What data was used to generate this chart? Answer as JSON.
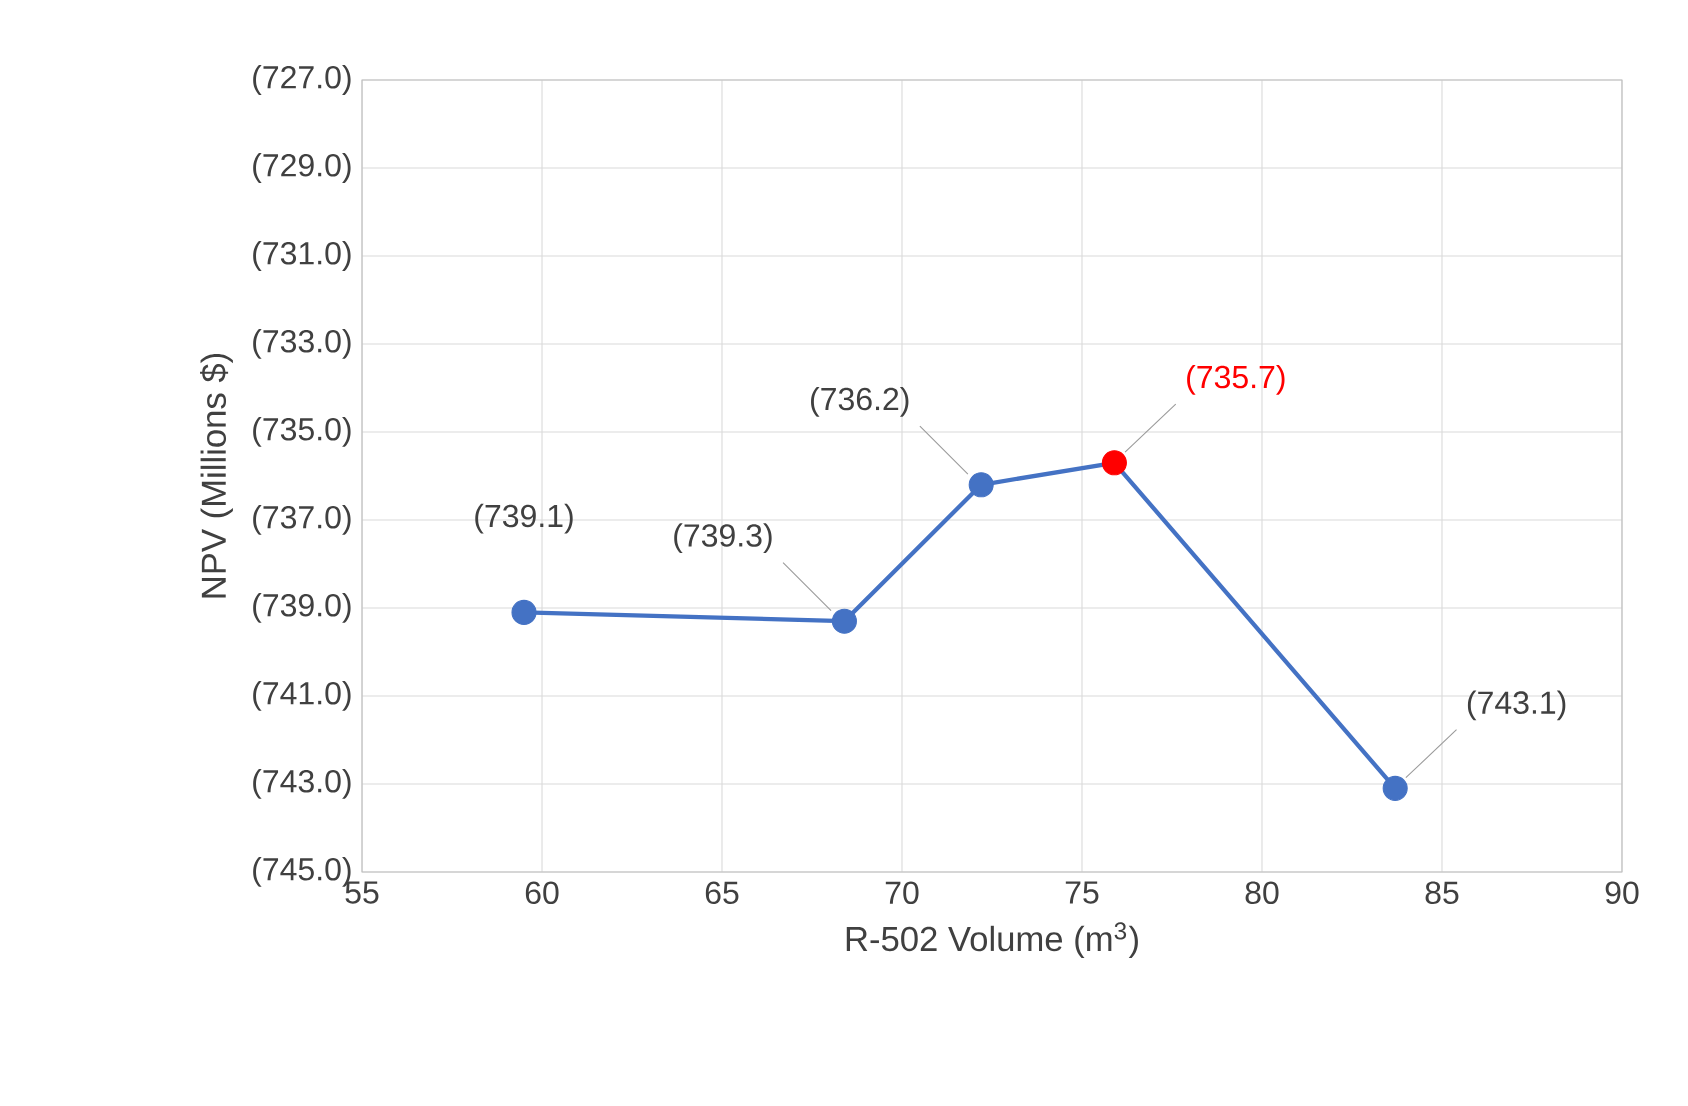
{
  "chart_data": {
    "type": "line",
    "xlabel": "R-502 Volume (m$^{3}$)",
    "ylabel": "NPV (Millions $)",
    "x": [
      59.5,
      68.4,
      72.2,
      75.9,
      83.7
    ],
    "series": [
      {
        "color": "#4472c4",
        "values": [
          -739.1,
          -739.3,
          -736.2,
          -735.7,
          -743.1
        ],
        "colors": [
          "#4472c4",
          "#4472c4",
          "#4472c4",
          "#ff0000",
          "#4472c4"
        ],
        "value_labels": [
          "(739.1)",
          "(739.3)",
          "(736.2)",
          "(735.7)",
          "(743.1)"
        ]
      }
    ],
    "xlim": [
      55,
      90
    ],
    "xticks": [
      55,
      60,
      65,
      70,
      75,
      80,
      85,
      90
    ],
    "ylim": [
      -745,
      -727
    ],
    "yticks": [
      {
        "value": -745,
        "label": "(745.0)"
      },
      {
        "value": -743,
        "label": "(743.0)"
      },
      {
        "value": -741,
        "label": "(741.0)"
      },
      {
        "value": -739,
        "label": "(739.0)"
      },
      {
        "value": -737,
        "label": "(737.0)"
      },
      {
        "value": -735,
        "label": "(735.0)"
      },
      {
        "value": -733,
        "label": "(733.0)"
      },
      {
        "value": -731,
        "label": "(731.0)"
      },
      {
        "value": -729,
        "label": "(729.0)"
      },
      {
        "value": -727,
        "label": "(727.0)"
      }
    ],
    "grid": true,
    "marker": "circle",
    "line_style": "solid"
  }
}
